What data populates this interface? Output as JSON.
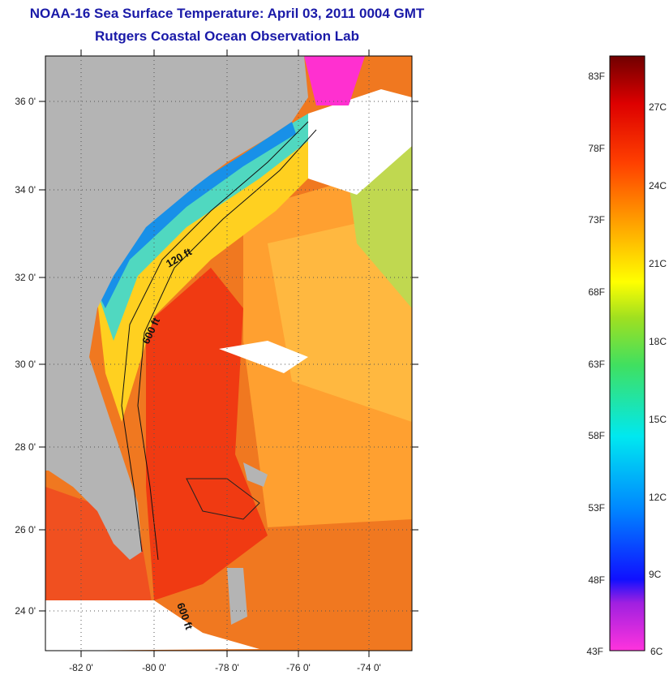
{
  "title": {
    "line1": "NOAA-16 Sea Surface Temperature:  April 03, 2011 0004 GMT",
    "line2": "Rutgers Coastal Ocean Observation Lab"
  },
  "map": {
    "lat_labels": [
      "36 0'",
      "34 0'",
      "32 0'",
      "30 0'",
      "28 0'",
      "26 0'",
      "24 0'"
    ],
    "lon_labels": [
      "-82 0'",
      "-80 0'",
      "-78 0'",
      "-76 0'",
      "-74 0'"
    ],
    "contour_labels": [
      "120 ft",
      "600 ft",
      "600 ft"
    ],
    "colors": {
      "land": "#b4b4b4",
      "cloud": "#ffffff",
      "gulf_stream": "#f03010",
      "shelf_water": "#30c8f0",
      "slope_water": "#ffa020"
    }
  },
  "colorbar": {
    "fahrenheit_labels": [
      "83F",
      "78F",
      "73F",
      "68F",
      "63F",
      "58F",
      "53F",
      "48F",
      "43F"
    ],
    "celsius_labels": [
      "27C",
      "24C",
      "21C",
      "18C",
      "15C",
      "12C",
      "9C",
      "6C"
    ]
  }
}
